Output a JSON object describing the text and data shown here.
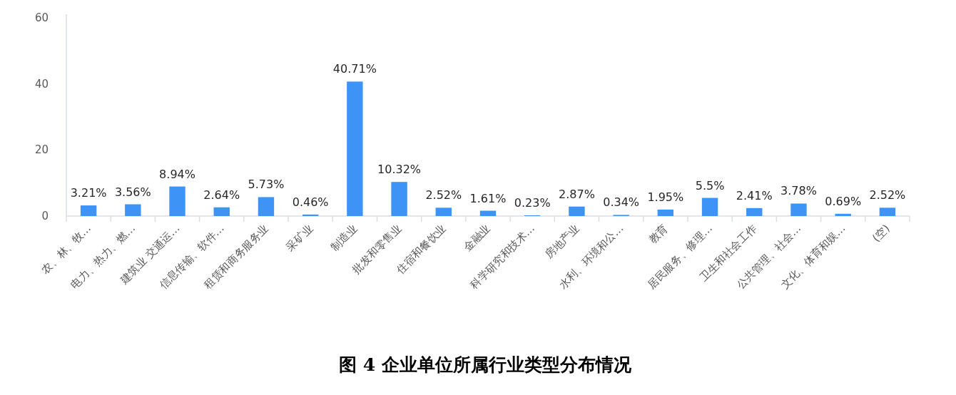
{
  "chart_data": {
    "type": "bar",
    "title": "图 4 企业单位所属行业类型分布情况",
    "categories": [
      "农、林、牧…",
      "电力、热力、燃…",
      "建筑业 交通运…",
      "信息传输、软件…",
      "租赁和商务服务业",
      "采矿业",
      "制造业",
      "批发和零售业",
      "住宿和餐饮业",
      "金融业",
      "科学研究和技术…",
      "房地产业",
      "水利、环境和公…",
      "教育",
      "居民服务、修理…",
      "卫生和社会工作",
      "公共管理、社会…",
      "文化、体育和娱…",
      "(空)"
    ],
    "values": [
      3.21,
      3.56,
      8.94,
      2.64,
      5.73,
      0.46,
      40.71,
      10.32,
      2.52,
      1.61,
      0.23,
      2.87,
      0.34,
      1.95,
      5.5,
      2.41,
      3.78,
      0.69,
      2.52
    ],
    "value_labels": [
      "3.21%",
      "3.56%",
      "8.94%",
      "2.64%",
      "5.73%",
      "0.46%",
      "40.71%",
      "10.32%",
      "2.52%",
      "1.61%",
      "0.23%",
      "2.87%",
      "0.34%",
      "1.95%",
      "5.5%",
      "2.41%",
      "3.78%",
      "0.69%",
      "2.52%"
    ],
    "color": "#3d94f6",
    "ylim": [
      0,
      60
    ],
    "yticks": [
      0,
      20,
      40,
      60
    ],
    "grid": false
  }
}
